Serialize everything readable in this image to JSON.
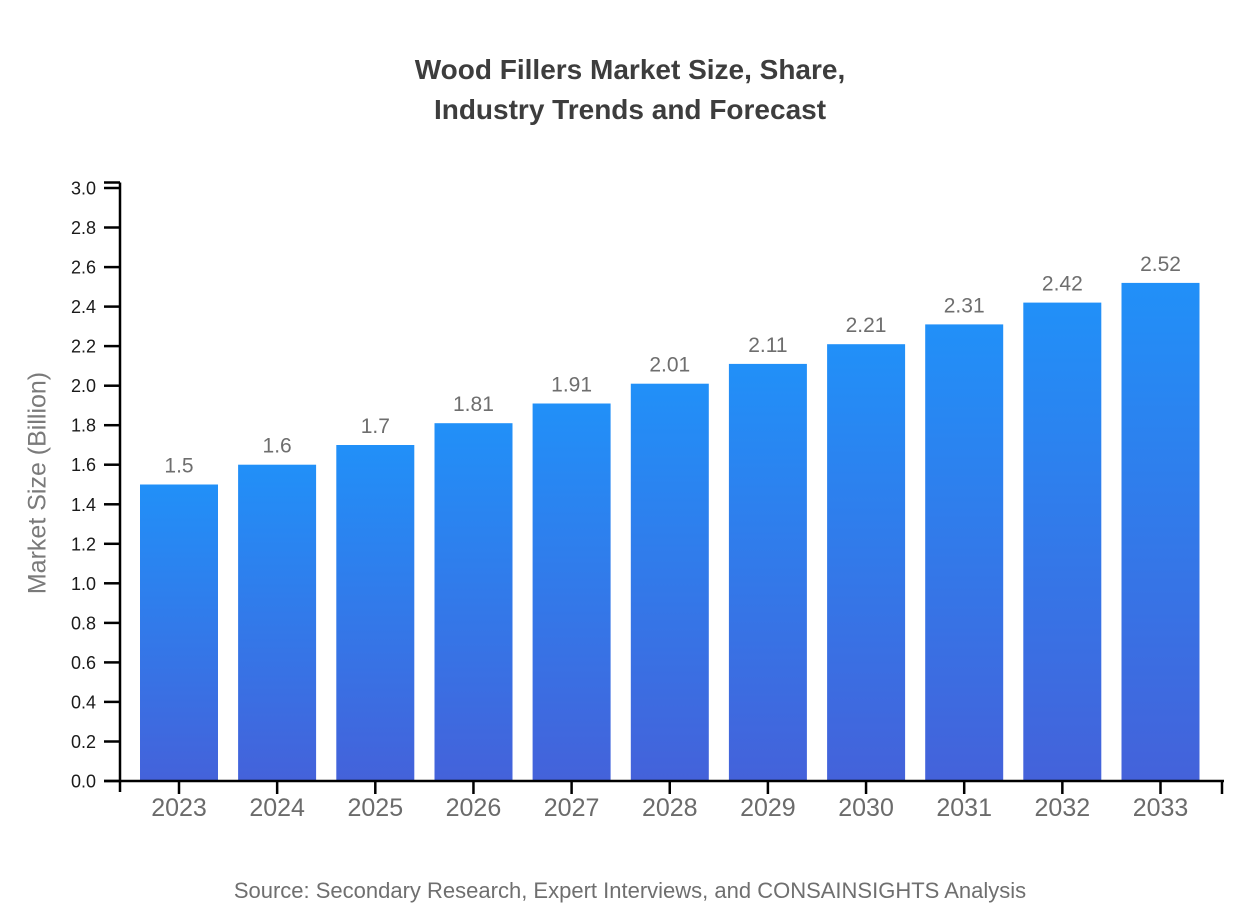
{
  "title": "Wood Fillers Market Size, Share,\nIndustry Trends and Forecast",
  "source": "Source: Secondary Research, Expert Interviews, and CONSAINSIGHTS Analysis",
  "chart_data": {
    "type": "bar",
    "title": "Wood Fillers Market Size, Share, Industry Trends and Forecast",
    "categories": [
      "2023",
      "2024",
      "2025",
      "2026",
      "2027",
      "2028",
      "2029",
      "2030",
      "2031",
      "2032",
      "2033"
    ],
    "values": [
      1.5,
      1.6,
      1.7,
      1.81,
      1.91,
      2.01,
      2.11,
      2.21,
      2.31,
      2.42,
      2.52
    ],
    "value_labels": [
      "1.5",
      "1.6",
      "1.7",
      "1.81",
      "1.91",
      "2.01",
      "2.11",
      "2.21",
      "2.31",
      "2.42",
      "2.52"
    ],
    "xlabel": "",
    "ylabel": "Market Size (Billion)",
    "ylim": [
      0.0,
      3.0
    ],
    "ytick_step": 0.2,
    "grid": false,
    "legend": "none",
    "colors": {
      "bar_top": "#2190f8",
      "bar_bottom": "#4462da",
      "axis": "#000000",
      "ytick_label": "#1a1a1a",
      "xtick_label": "#6b6b6b",
      "value_label": "#6e6e6e",
      "title": "#3d3d3d",
      "ylabel": "#7a7a7a",
      "source": "#6f6f6f"
    }
  }
}
